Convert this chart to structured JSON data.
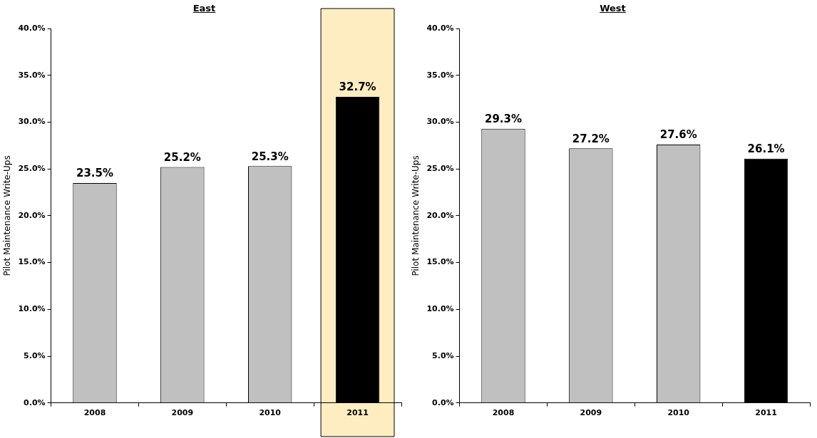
{
  "chart_data": [
    {
      "type": "bar",
      "title": "East",
      "ylabel": "Pilot Maintenance Write-Ups",
      "categories": [
        "2008",
        "2009",
        "2010",
        "2011"
      ],
      "values": [
        23.5,
        25.2,
        25.3,
        32.7
      ],
      "value_labels": [
        "23.5%",
        "25.2%",
        "25.3%",
        "32.7%"
      ],
      "colors": [
        "#c0c0c0",
        "#c0c0c0",
        "#c0c0c0",
        "#000000"
      ],
      "ylim": [
        0,
        40
      ],
      "yticks": [
        {
          "value": 0,
          "label": "0.0%"
        },
        {
          "value": 5,
          "label": "5.0%"
        },
        {
          "value": 10,
          "label": "10.0%"
        },
        {
          "value": 15,
          "label": "15.0%"
        },
        {
          "value": 20,
          "label": "20.0%"
        },
        {
          "value": 25,
          "label": "25.0%"
        },
        {
          "value": 30,
          "label": "30.0%"
        },
        {
          "value": 35,
          "label": "35.0%"
        },
        {
          "value": 40,
          "label": "40.0%"
        }
      ],
      "grid": false,
      "legend": false,
      "bands": [
        {
          "axis": "x",
          "from": "2011",
          "to": "2011",
          "color": "#fdedc0"
        }
      ]
    },
    {
      "type": "bar",
      "title": "West",
      "ylabel": "Pilot Maintenance Write-Ups",
      "categories": [
        "2008",
        "2009",
        "2010",
        "2011"
      ],
      "values": [
        29.3,
        27.2,
        27.6,
        26.1
      ],
      "value_labels": [
        "29.3%",
        "27.2%",
        "27.6%",
        "26.1%"
      ],
      "colors": [
        "#c0c0c0",
        "#c0c0c0",
        "#c0c0c0",
        "#000000"
      ],
      "ylim": [
        0,
        40
      ],
      "yticks": [
        {
          "value": 0,
          "label": "0.0%"
        },
        {
          "value": 5,
          "label": "5.0%"
        },
        {
          "value": 10,
          "label": "10.0%"
        },
        {
          "value": 15,
          "label": "15.0%"
        },
        {
          "value": 20,
          "label": "20.0%"
        },
        {
          "value": 25,
          "label": "25.0%"
        },
        {
          "value": 30,
          "label": "30.0%"
        },
        {
          "value": 35,
          "label": "35.0%"
        },
        {
          "value": 40,
          "label": "40.0%"
        }
      ],
      "grid": false,
      "legend": false
    }
  ]
}
